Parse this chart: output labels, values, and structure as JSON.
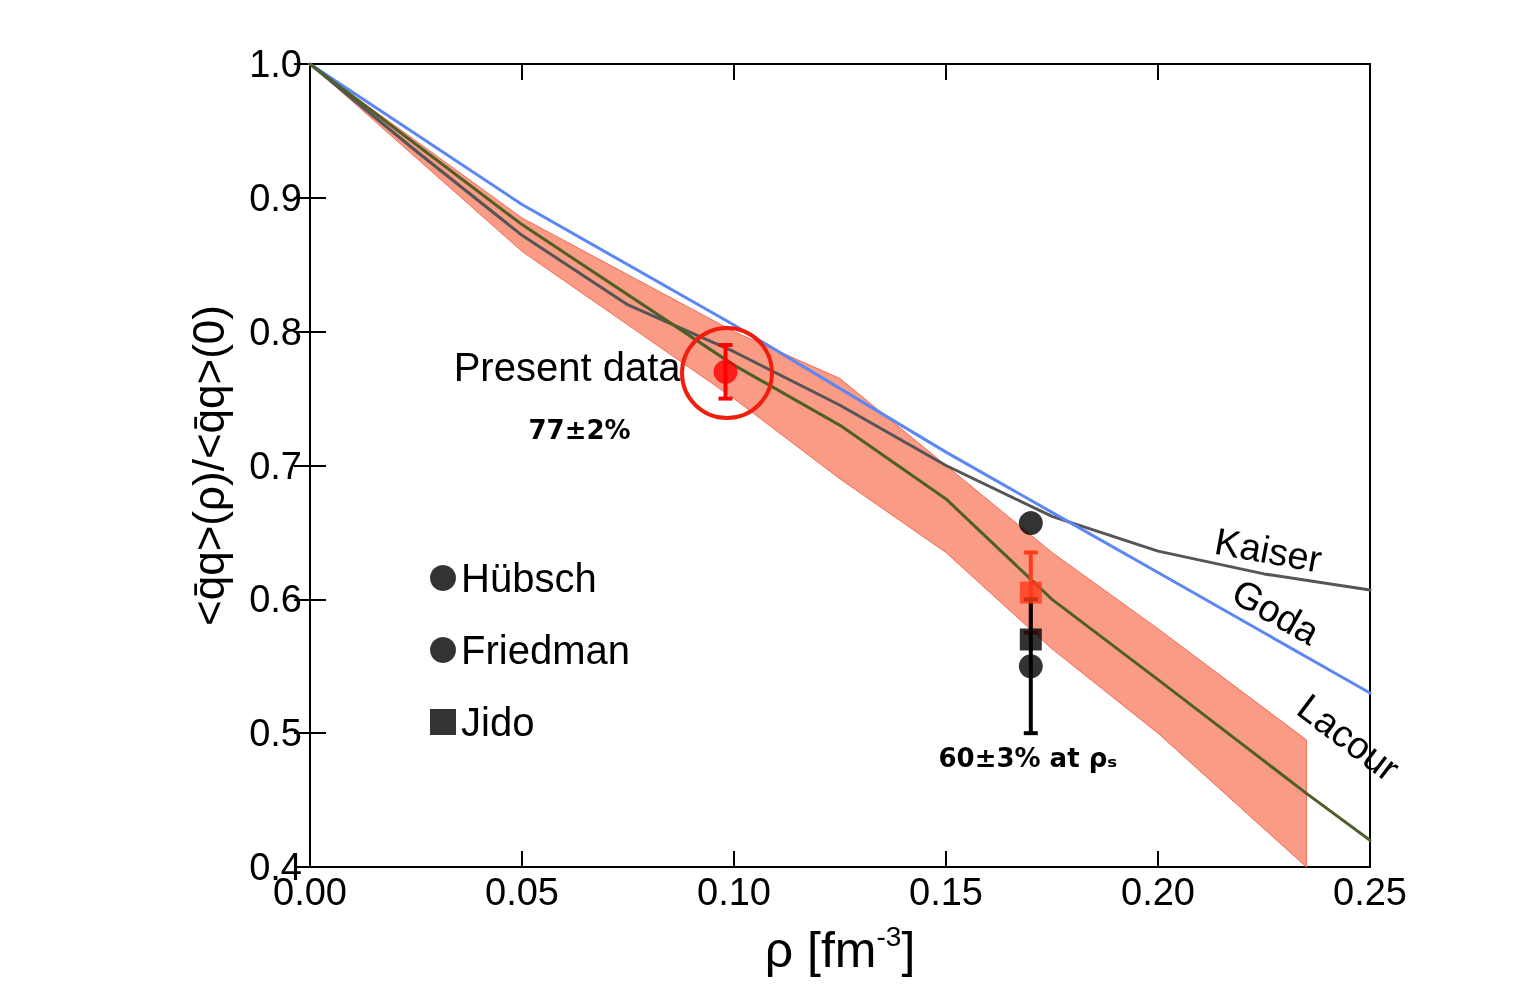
{
  "chart_data": {
    "type": "line",
    "xlabel": "ρ [fm$^{-3}$]",
    "ylabel": "<q̄q>(ρ)/<q̄q>(0)",
    "xlim": [
      0,
      0.25
    ],
    "xticks": [
      {
        "value": 0,
        "label": "0.00"
      },
      {
        "value": 0.05,
        "label": "0.05"
      },
      {
        "value": 0.1,
        "label": "0.10"
      },
      {
        "value": 0.15,
        "label": "0.15"
      },
      {
        "value": 0.2,
        "label": "0.20"
      },
      {
        "value": 0.25,
        "label": "0.25"
      }
    ],
    "ylim": [
      0.4,
      1.0
    ],
    "yticks": [
      0.4,
      0.5,
      0.6,
      0.7,
      0.8,
      0.9,
      {
        "value": 1.0,
        "label": "1.0"
      }
    ],
    "legend": "bottom left",
    "series": [
      {
        "name": "Kaiser",
        "color": "#555555",
        "x": [
          0,
          0.025,
          0.05,
          0.075,
          0.1,
          0.125,
          0.15,
          0.175,
          0.2,
          0.225,
          0.25
        ],
        "values": [
          1.0,
          0.935,
          0.872,
          0.82,
          0.785,
          0.745,
          0.7,
          0.662,
          0.636,
          0.619,
          0.607
        ]
      },
      {
        "name": "Goda",
        "color": "#5b86f5",
        "x": [
          0,
          0.05,
          0.1,
          0.15,
          0.175,
          0.2,
          0.225,
          0.25
        ],
        "values": [
          1.0,
          0.895,
          0.805,
          0.71,
          0.665,
          0.62,
          0.575,
          0.53
        ]
      },
      {
        "name": "Lacour",
        "color": "#4f5f28",
        "x": [
          0,
          0.05,
          0.1,
          0.125,
          0.15,
          0.175,
          0.2,
          0.235,
          0.25
        ],
        "values": [
          1.0,
          0.88,
          0.775,
          0.73,
          0.675,
          0.6,
          0.54,
          0.455,
          0.42
        ],
        "lower": [
          1.0,
          0.86,
          0.75,
          0.69,
          0.635,
          0.563,
          0.5,
          0.4,
          null
        ],
        "upper": [
          1.0,
          0.885,
          0.8,
          0.765,
          0.7,
          0.635,
          0.578,
          0.495,
          null
        ]
      },
      {
        "type": "scatter",
        "color": "#ff0000",
        "marker": "circle",
        "x": [
          0.098
        ],
        "values": [
          0.77
        ],
        "errors": [
          0.02
        ]
      },
      {
        "type": "scatter",
        "color": "#ff3b1a",
        "marker": "square",
        "x": [
          0.17
        ],
        "values": [
          0.605
        ],
        "errors": [
          0.03
        ]
      },
      {
        "name": "Hübsch",
        "type": "scatter",
        "color": "#000000",
        "marker": "circle",
        "x": [
          0.17
        ],
        "values": [
          0.657
        ]
      },
      {
        "name": "Friedman",
        "type": "scatter",
        "color": "#000000",
        "marker": "circle",
        "x": [
          0.17
        ],
        "values": [
          0.55
        ],
        "errors": [
          [
            0.5,
            0.6
          ]
        ]
      },
      {
        "name": "Jido",
        "type": "scatter",
        "color": "#000000",
        "marker": "square",
        "x": [
          0.17
        ],
        "values": [
          0.57
        ]
      }
    ],
    "annotations": [
      "Present data",
      "77±2%",
      "60±3% at ρₛ"
    ]
  }
}
